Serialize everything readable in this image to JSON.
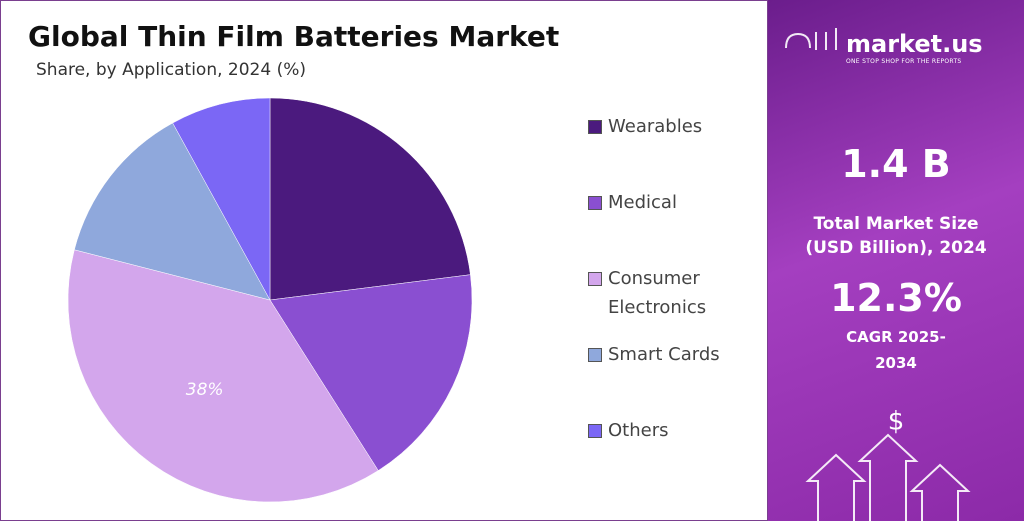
{
  "chart_data": {
    "type": "pie",
    "title": "Global Thin Film Batteries Market",
    "subtitle": "Share, by Application, 2024 (%)",
    "categories": [
      "Wearables",
      "Medical",
      "Consumer Electronics",
      "Smart Cards",
      "Others"
    ],
    "values": [
      23,
      18,
      38,
      13,
      8
    ],
    "value_labels": [
      null,
      null,
      "38%",
      null,
      null
    ],
    "colors": [
      "#4b1a7e",
      "#8a4fd1",
      "#d3a6ec",
      "#8fa8dc",
      "#7b67f5"
    ],
    "legend": "right"
  },
  "panel": {
    "brand": "market.us",
    "tagline": "ONE STOP SHOP FOR THE REPORTS",
    "market_size": "1.4 B",
    "market_size_label": "Total Market Size (USD Billion), 2024",
    "cagr": "12.3%",
    "cagr_label": "CAGR 2025-2034"
  }
}
